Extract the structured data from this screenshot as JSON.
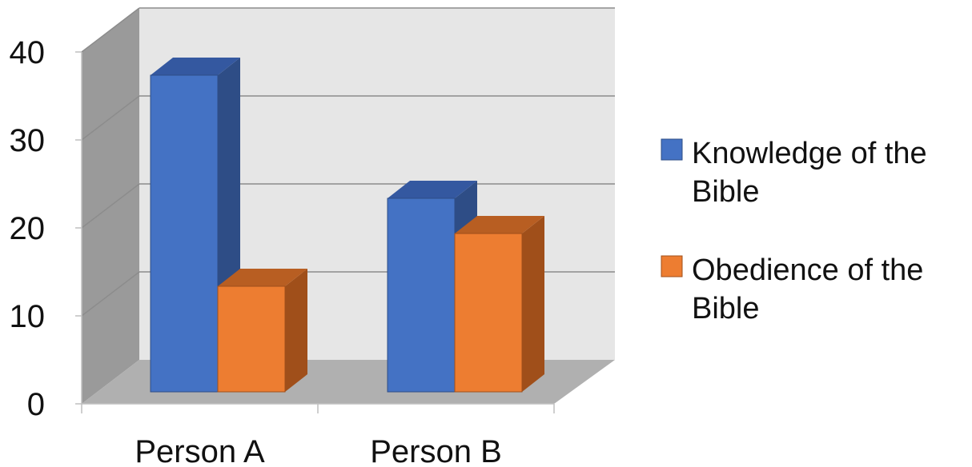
{
  "chart_data": {
    "type": "bar",
    "style": "3d-clustered-column",
    "categories": [
      "Person A",
      "Person B"
    ],
    "series": [
      {
        "name": "Knowledge of the Bible",
        "legend_lines": [
          "Knowledge of the",
          "Bible"
        ],
        "values": [
          36,
          22
        ],
        "color": "#4472C4",
        "side_color": "#2E4D86",
        "top_color": "#3458A0"
      },
      {
        "name": "Obedience of the Bible",
        "legend_lines": [
          "Obedience of the",
          "Bible"
        ],
        "values": [
          12,
          18
        ],
        "color": "#ED7D31",
        "side_color": "#A04F1A",
        "top_color": "#B85E22"
      }
    ],
    "y_ticks": [
      0,
      10,
      20,
      30,
      40
    ],
    "ylim": [
      0,
      40
    ],
    "title": "",
    "xlabel": "",
    "ylabel": "",
    "grid": true,
    "legend_position": "right",
    "colors": {
      "back_wall": "#E6E6E6",
      "side_wall": "#9A9A9A",
      "floor": "#B0B0B0",
      "gridline": "#8C8C8C"
    }
  }
}
